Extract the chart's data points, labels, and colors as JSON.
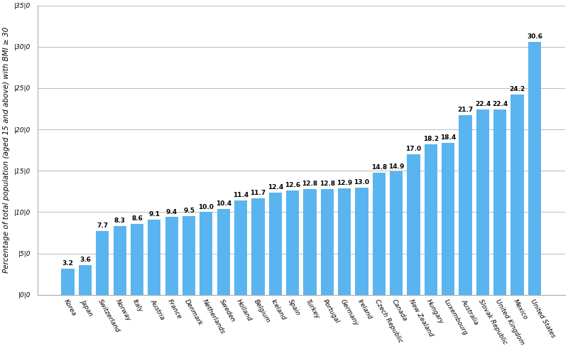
{
  "categories": [
    "Korea",
    "Japan",
    "Switzerland",
    "Norway",
    "Italy",
    "Austria",
    "France",
    "Denmark",
    "Netherlands",
    "Sweden",
    "Holland",
    "Belgium",
    "Iceland",
    "Spain",
    "Turkey",
    "Portugal",
    "Germany",
    "Ireland",
    "Czech Republic",
    "Canada",
    "New Zealand",
    "Hungary",
    "Luxembourg",
    "Australia",
    "Slovak Republic",
    "United Kingdom",
    "Mexico",
    "United States"
  ],
  "values": [
    3.2,
    3.6,
    7.7,
    8.3,
    8.6,
    9.1,
    9.4,
    9.5,
    10.0,
    10.4,
    11.4,
    11.7,
    12.4,
    12.6,
    12.8,
    12.8,
    12.9,
    13.0,
    14.8,
    14.9,
    17.0,
    18.2,
    18.4,
    21.7,
    22.4,
    22.4,
    24.2,
    30.6
  ],
  "bar_color": "#5ab4f0",
  "ylabel": "Percentage of total population (aged 15 and above) with BMI ≥ 30",
  "ylim": [
    0,
    35
  ],
  "yticks": [
    0,
    5,
    10,
    15,
    20,
    25,
    30,
    35
  ],
  "ytick_labels": [
    "|0|0",
    "|5|0",
    "|10|0",
    "|15|0",
    "|20|0",
    "|25|0",
    "|30|0",
    "|35|0"
  ],
  "label_fontsize": 6.5,
  "bar_label_fontsize": 6.5,
  "ylabel_fontsize": 7.5,
  "background_color": "#ffffff",
  "grid_color": "#bbbbbb"
}
